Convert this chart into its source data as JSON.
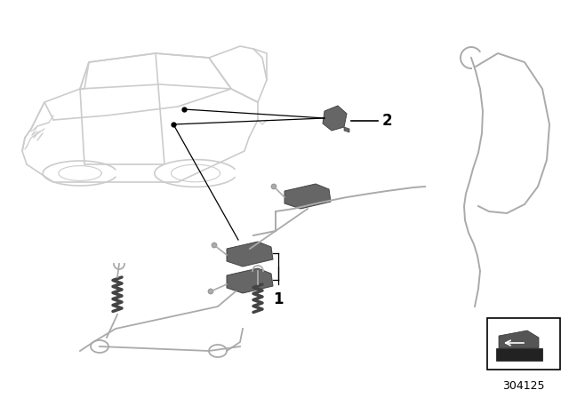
{
  "bg_color": "#ffffff",
  "car_color": "#cccccc",
  "part_color": "#666666",
  "wire_color": "#aaaaaa",
  "line_color": "#000000",
  "diagram_number": "304125",
  "label1": "1",
  "label2": "2",
  "figsize": [
    6.4,
    4.48
  ],
  "dpi": 100
}
